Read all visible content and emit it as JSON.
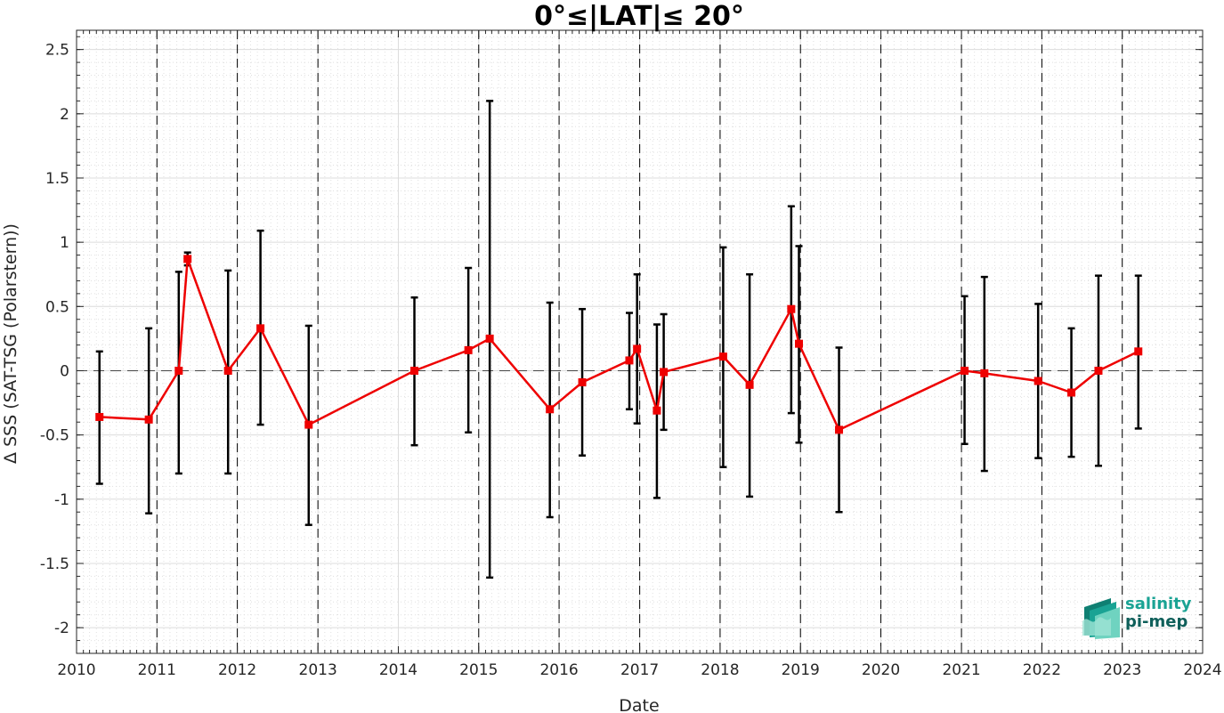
{
  "chart_data": {
    "type": "scatter",
    "title": "0°≤|LAT|≤ 20°",
    "xlabel": "Date",
    "ylabel": "Δ SSS (SAT-TSG (Polarstern))",
    "xlim": [
      "2010-01-01",
      "2024-01-01"
    ],
    "ylim": [
      -2.2,
      2.65
    ],
    "xticks": [
      "2010",
      "2011",
      "2012",
      "2013",
      "2014",
      "2015",
      "2016",
      "2017",
      "2018",
      "2019",
      "2020",
      "2021",
      "2022",
      "2023",
      "2024"
    ],
    "yticks": [
      -2,
      -1.5,
      -1,
      -0.5,
      0,
      0.5,
      1,
      1.5,
      2,
      2.5
    ],
    "ytick_labels": [
      "-2",
      "-1.5",
      "-1",
      "-0.5",
      "0",
      "0.5",
      "1",
      "1.5",
      "2",
      "2.5"
    ],
    "grid": true,
    "vertical_dashed_lines": [
      "2011-01-01",
      "2012-01-01",
      "2013-01-01",
      "2015-01-01",
      "2016-01-01",
      "2017-01-01",
      "2018-01-01",
      "2019-01-01",
      "2020-01-01",
      "2021-01-01",
      "2022-01-01",
      "2023-01-01"
    ],
    "reference_line_y": 0,
    "series": [
      {
        "color": "#ee0000",
        "errorbar_color": "#000000",
        "points": [
          {
            "date": "2010-04-15",
            "y": -0.36,
            "err_low": -0.88,
            "err_high": 0.15
          },
          {
            "date": "2010-11-25",
            "y": -0.38,
            "err_low": -1.11,
            "err_high": 0.33
          },
          {
            "date": "2011-04-10",
            "y": 0.0,
            "err_low": -0.8,
            "err_high": 0.77
          },
          {
            "date": "2011-05-20",
            "y": 0.87,
            "err_low": 0.82,
            "err_high": 0.92
          },
          {
            "date": "2011-11-20",
            "y": 0.0,
            "err_low": -0.8,
            "err_high": 0.78
          },
          {
            "date": "2012-04-15",
            "y": 0.33,
            "err_low": -0.42,
            "err_high": 1.09
          },
          {
            "date": "2012-11-20",
            "y": -0.42,
            "err_low": -1.2,
            "err_high": 0.35
          },
          {
            "date": "2014-03-15",
            "y": 0.0,
            "err_low": -0.58,
            "err_high": 0.57
          },
          {
            "date": "2014-11-15",
            "y": 0.16,
            "err_low": -0.48,
            "err_high": 0.8
          },
          {
            "date": "2015-02-20",
            "y": 0.25,
            "err_low": -1.61,
            "err_high": 2.1
          },
          {
            "date": "2015-11-20",
            "y": -0.3,
            "err_low": -1.14,
            "err_high": 0.53
          },
          {
            "date": "2016-04-15",
            "y": -0.09,
            "err_low": -0.66,
            "err_high": 0.48
          },
          {
            "date": "2016-11-15",
            "y": 0.08,
            "err_low": -0.3,
            "err_high": 0.45
          },
          {
            "date": "2016-12-20",
            "y": 0.17,
            "err_low": -0.41,
            "err_high": 0.75
          },
          {
            "date": "2017-03-20",
            "y": -0.31,
            "err_low": -0.99,
            "err_high": 0.36
          },
          {
            "date": "2017-04-20",
            "y": -0.01,
            "err_low": -0.46,
            "err_high": 0.44
          },
          {
            "date": "2018-01-15",
            "y": 0.11,
            "err_low": -0.75,
            "err_high": 0.96
          },
          {
            "date": "2018-05-15",
            "y": -0.11,
            "err_low": -0.98,
            "err_high": 0.75
          },
          {
            "date": "2018-11-20",
            "y": 0.48,
            "err_low": -0.33,
            "err_high": 1.28
          },
          {
            "date": "2018-12-25",
            "y": 0.21,
            "err_low": -0.56,
            "err_high": 0.97
          },
          {
            "date": "2019-06-25",
            "y": -0.46,
            "err_low": -1.1,
            "err_high": 0.18
          },
          {
            "date": "2021-01-15",
            "y": 0.0,
            "err_low": -0.57,
            "err_high": 0.58
          },
          {
            "date": "2021-04-15",
            "y": -0.02,
            "err_low": -0.78,
            "err_high": 0.73
          },
          {
            "date": "2021-12-15",
            "y": -0.08,
            "err_low": -0.68,
            "err_high": 0.52
          },
          {
            "date": "2022-05-15",
            "y": -0.17,
            "err_low": -0.67,
            "err_high": 0.33
          },
          {
            "date": "2022-09-15",
            "y": 0.0,
            "err_low": -0.74,
            "err_high": 0.74
          },
          {
            "date": "2023-03-15",
            "y": 0.15,
            "err_low": -0.45,
            "err_high": 0.74
          }
        ]
      }
    ]
  },
  "logo": {
    "line1": "salinity",
    "line2": "pi-mep",
    "colors": [
      "#1aa394",
      "#0f5f5a",
      "#6fd3c0"
    ]
  }
}
